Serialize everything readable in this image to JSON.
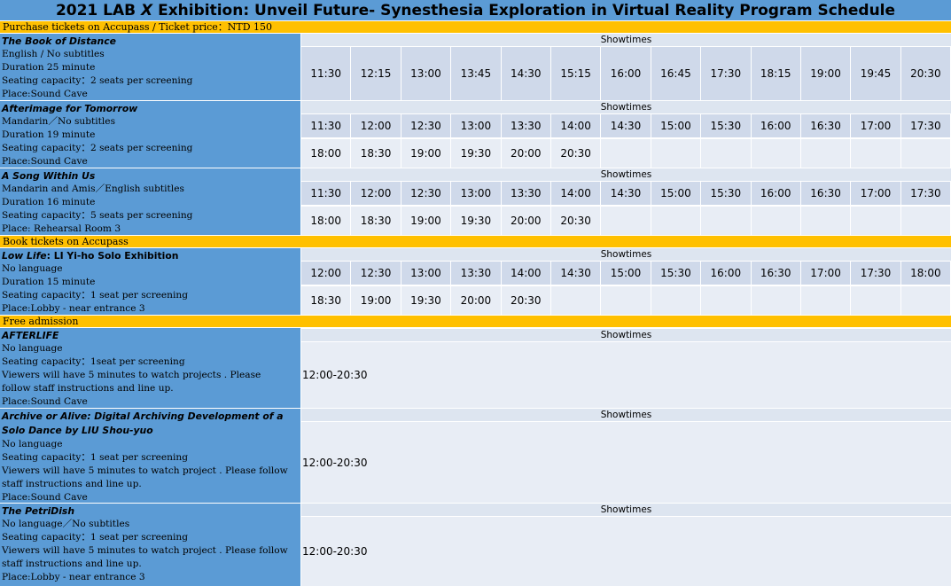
{
  "title_pre": "2021 LAB ",
  "title_x": "X",
  "title_post": " Exhibition: Unveil Future- Synesthesia Exploration in Virtual Reality Program Schedule",
  "sections": {
    "purchase": "Purchase tickets on Accupass / Ticket price：NTD 150",
    "book": " Book tickets on Accupass",
    "free": " Free admission"
  },
  "showtimes_label": "Showtimes",
  "programs": [
    {
      "title": "The Book of Distance",
      "lines": [
        "English / No subtitles",
        "Duration 25 minute",
        "Seating capacity：2 seats per screening",
        "Place:Sound Cave"
      ],
      "rows": [
        [
          "11:30",
          "12:15",
          "13:00",
          "13:45",
          "14:30",
          "15:15",
          "16:00",
          "16:45",
          "17:30",
          "18:15",
          "19:00",
          "19:45",
          "20:30"
        ]
      ]
    },
    {
      "title": "Afterimage for Tomorrow",
      "lines": [
        "Mandarin／No subtitles",
        "Duration 19 minute",
        "Seating capacity：2 seats per screening",
        "Place:Sound Cave"
      ],
      "rows": [
        [
          "11:30",
          "12:00",
          "12:30",
          "13:00",
          "13:30",
          "14:00",
          "14:30",
          "15:00",
          "15:30",
          "16:00",
          "16:30",
          "17:00",
          "17:30"
        ],
        [
          "18:00",
          "18:30",
          "19:00",
          "19:30",
          "20:00",
          "20:30",
          "",
          "",
          "",
          "",
          "",
          "",
          ""
        ]
      ]
    },
    {
      "title": "A Song Within Us",
      "lines": [
        "Mandarin and Amis／English subtitles",
        "Duration 16 minute",
        "Seating capacity：5 seats per screening",
        "Place: Rehearsal Room 3"
      ],
      "rows": [
        [
          "11:30",
          "12:00",
          "12:30",
          "13:00",
          "13:30",
          "14:00",
          "14:30",
          "15:00",
          "15:30",
          "16:00",
          "16:30",
          "17:00",
          "17:30"
        ],
        [
          "18:00",
          "18:30",
          "19:00",
          "19:30",
          "20:00",
          "20:30",
          "",
          "",
          "",
          "",
          "",
          "",
          ""
        ]
      ]
    },
    {
      "title_italic": "Low Life",
      "title_plain": ": LI Yi-ho Solo Exhibition",
      "lines": [
        "No language",
        "Duration 15 minute",
        "Seating capacity：1 seat  per screening",
        "Place:Lobby - near entrance 3"
      ],
      "rows": [
        [
          "12:00",
          "12:30",
          "13:00",
          "13:30",
          "14:00",
          "14:30",
          "15:00",
          "15:30",
          "16:00",
          "16:30",
          "17:00",
          "17:30",
          "18:00"
        ],
        [
          "18:30",
          "19:00",
          "19:30",
          "20:00",
          "20:30",
          "",
          "",
          "",
          "",
          "",
          "",
          "",
          ""
        ]
      ]
    },
    {
      "title": "AFTERLIFE",
      "lines": [
        "No language",
        "Seating capacity：1seat  per screening",
        "Viewers will have 5 minutes to watch projects . Please follow staff instructions and line up.",
        "Place:Sound Cave"
      ],
      "time": "12:00-20:30"
    },
    {
      "title": "Archive or Alive: Digital Archiving Development of a Solo Dance by LIU Shou-yuo",
      "lines": [
        "No language",
        "Seating capacity：1 seat  per screening",
        "Viewers will have 5 minutes to watch project . Please follow staff instructions and line up.",
        "Place:Sound Cave"
      ],
      "time": "12:00-20:30"
    },
    {
      "title": "The PetriDish",
      "lines": [
        "No language／No subtitles",
        "Seating capacity：1 seat  per screening",
        "Viewers will have 5 minutes to watch project . Please follow staff instructions and line up.",
        "Place:Lobby - near entrance 3"
      ],
      "time": "12:00-20:30"
    }
  ]
}
